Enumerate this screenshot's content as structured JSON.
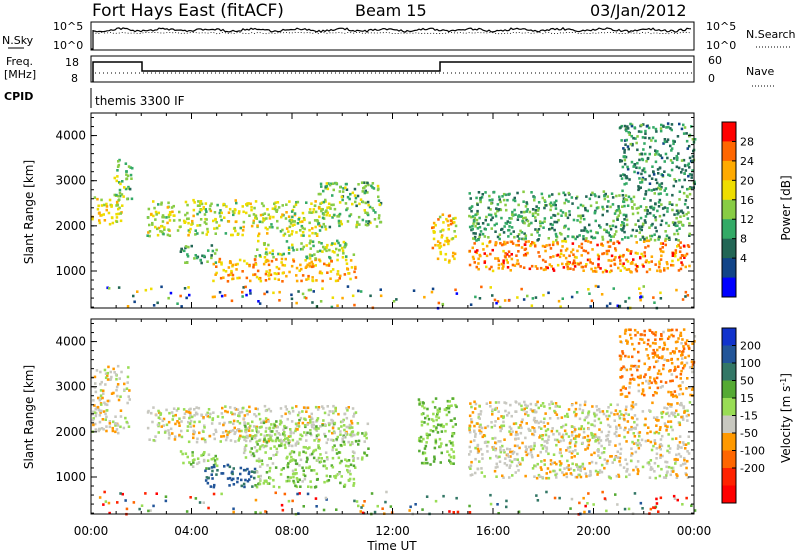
{
  "header": {
    "station": "Fort Hays East (fitACF)",
    "beam": "Beam 15",
    "date": "03/Jan/2012"
  },
  "status_panel": {
    "nsky_label": "N.Sky",
    "nsearch_label": "N.Search",
    "freq_label": "Freq.",
    "freq_unit": "[MHz]",
    "nave_label": "Nave",
    "cpid_label": "CPID",
    "cpid_value": "themis 3300 IF",
    "noise_ticks_left": [
      "10^5",
      "10^0"
    ],
    "noise_ticks_right": [
      "10^5",
      "10^0"
    ],
    "freq_ticks": [
      "18",
      "8"
    ],
    "nave_ticks": [
      "60",
      "0"
    ]
  },
  "power_colorbar": {
    "label": "Power [dB]",
    "ticks": [
      "28",
      "24",
      "20",
      "16",
      "12",
      "8",
      "4"
    ],
    "colors": [
      "#ff0000",
      "#ff6600",
      "#ffaa00",
      "#eedd00",
      "#88cc44",
      "#33aa66",
      "#226655",
      "#114488",
      "#0000ff"
    ]
  },
  "velocity_colorbar": {
    "label": "Velocity [m s",
    "label_sup": "-1",
    "label_end": "]",
    "ticks": [
      "200",
      "100",
      "50",
      "15",
      "-15",
      "-50",
      "-100",
      "-200"
    ],
    "colors": [
      "#1133cc",
      "#225599",
      "#337766",
      "#55aa33",
      "#99dd55",
      "#c8c8c0",
      "#ff9900",
      "#ff6600",
      "#ff2200",
      "#ff0000"
    ]
  },
  "chart_data": [
    {
      "type": "heatmap",
      "title": "Power",
      "xlabel": "Time UT",
      "ylabel": "Slant Range [km]",
      "x_ticks": [
        "00:00",
        "04:00",
        "08:00",
        "12:00",
        "16:00",
        "20:00",
        "00:00"
      ],
      "y_ticks": [
        1000,
        2000,
        3000,
        4000
      ],
      "xlim_hours": [
        0,
        24
      ],
      "ylim_km": [
        180,
        4500
      ],
      "bands": [
        {
          "t": [
            0.0,
            1.2
          ],
          "r": [
            2000,
            2700
          ],
          "v": 20
        },
        {
          "t": [
            0.8,
            1.6
          ],
          "r": [
            2600,
            3500
          ],
          "v": 14
        },
        {
          "t": [
            2.2,
            9.5
          ],
          "r": [
            1800,
            2600
          ],
          "v": 18
        },
        {
          "t": [
            3.5,
            5.0
          ],
          "r": [
            1200,
            1600
          ],
          "v": 12
        },
        {
          "t": [
            4.8,
            10.5
          ],
          "r": [
            800,
            1300
          ],
          "v": 24
        },
        {
          "t": [
            6.5,
            10.5
          ],
          "r": [
            1300,
            1700
          ],
          "v": 16
        },
        {
          "t": [
            9.0,
            11.5
          ],
          "r": [
            2000,
            3000
          ],
          "v": 14
        },
        {
          "t": [
            13.5,
            14.5
          ],
          "r": [
            1200,
            2300
          ],
          "v": 22
        },
        {
          "t": [
            15.0,
            23.8
          ],
          "r": [
            1000,
            1700
          ],
          "v": 26
        },
        {
          "t": [
            15.0,
            23.8
          ],
          "r": [
            1700,
            2800
          ],
          "v": 12
        },
        {
          "t": [
            21.0,
            24.0
          ],
          "r": [
            2800,
            4300
          ],
          "v": 10
        }
      ]
    },
    {
      "type": "heatmap",
      "title": "Velocity",
      "xlabel": "Time UT",
      "ylabel": "Slant Range [km]",
      "x_ticks": [
        "00:00",
        "04:00",
        "08:00",
        "12:00",
        "16:00",
        "20:00",
        "00:00"
      ],
      "y_ticks": [
        1000,
        2000,
        3000,
        4000
      ],
      "xlim_hours": [
        0,
        24
      ],
      "ylim_km": [
        180,
        4500
      ],
      "bands": [
        {
          "t": [
            0.0,
            1.5
          ],
          "r": [
            2000,
            3500
          ],
          "v": 0
        },
        {
          "t": [
            2.2,
            10.5
          ],
          "r": [
            1800,
            2600
          ],
          "v": 0
        },
        {
          "t": [
            3.5,
            5.0
          ],
          "r": [
            1200,
            1600
          ],
          "v": 30
        },
        {
          "t": [
            4.5,
            6.5
          ],
          "r": [
            800,
            1300
          ],
          "v": 160
        },
        {
          "t": [
            6.5,
            10.5
          ],
          "r": [
            800,
            1400
          ],
          "v": 40
        },
        {
          "t": [
            6.0,
            11.0
          ],
          "r": [
            1400,
            2300
          ],
          "v": 30
        },
        {
          "t": [
            13.0,
            14.5
          ],
          "r": [
            1300,
            2800
          ],
          "v": 45
        },
        {
          "t": [
            15.0,
            23.8
          ],
          "r": [
            1000,
            2700
          ],
          "v": 0
        },
        {
          "t": [
            21.0,
            24.0
          ],
          "r": [
            2800,
            4300
          ],
          "v": -40
        }
      ]
    }
  ]
}
